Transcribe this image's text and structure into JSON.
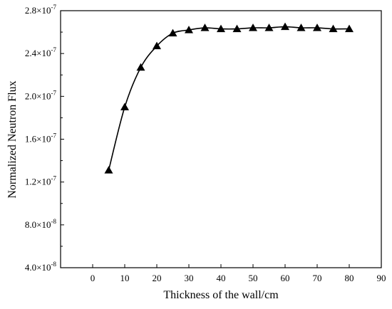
{
  "chart_data": {
    "type": "line",
    "title": "",
    "xlabel": "Thickness of the wall/cm",
    "ylabel": "Normalized Neutron Flux",
    "xlim": [
      -10,
      90
    ],
    "ylim": [
      4e-08,
      2.8e-07
    ],
    "x_ticks": [
      0,
      10,
      20,
      30,
      40,
      50,
      60,
      70,
      80,
      90
    ],
    "x_tick_labels": [
      "0",
      "10",
      "20",
      "30",
      "40",
      "50",
      "60",
      "70",
      "80",
      "90"
    ],
    "y_ticks": [
      {
        "value": 4e-08,
        "mantissa": "4.0×10",
        "exp": "-8"
      },
      {
        "value": 8e-08,
        "mantissa": "8.0×10",
        "exp": "-8"
      },
      {
        "value": 1.2e-07,
        "mantissa": "1.2×10",
        "exp": "-7"
      },
      {
        "value": 1.6e-07,
        "mantissa": "1.6×10",
        "exp": "-7"
      },
      {
        "value": 2e-07,
        "mantissa": "2.0×10",
        "exp": "-7"
      },
      {
        "value": 2.4e-07,
        "mantissa": "2.4×10",
        "exp": "-7"
      },
      {
        "value": 2.8e-07,
        "mantissa": "2.8×10",
        "exp": "-7"
      }
    ],
    "grid": false,
    "marker": "triangle",
    "color": "#000000",
    "series": [
      {
        "x": [
          5,
          10,
          15,
          20,
          25,
          30,
          35,
          40,
          45,
          50,
          55,
          60,
          65,
          70,
          75,
          80
        ],
        "y": [
          1.31e-07,
          1.9e-07,
          2.27e-07,
          2.47e-07,
          2.59e-07,
          2.62e-07,
          2.64e-07,
          2.63e-07,
          2.63e-07,
          2.64e-07,
          2.64e-07,
          2.65e-07,
          2.64e-07,
          2.64e-07,
          2.63e-07,
          2.63e-07
        ]
      }
    ]
  }
}
